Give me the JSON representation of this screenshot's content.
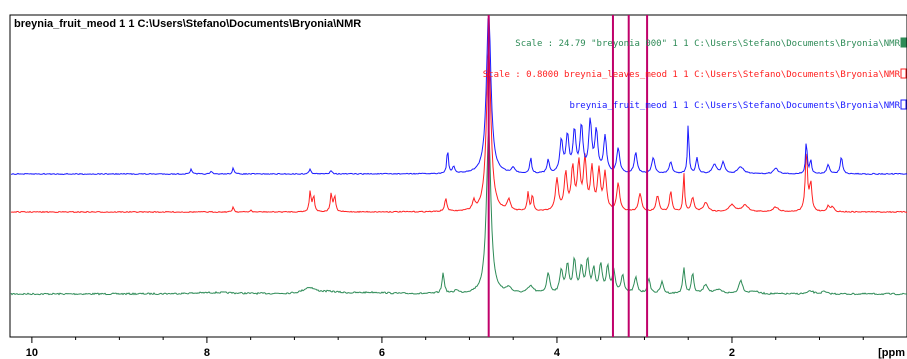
{
  "window": {
    "title": "breynia_fruit_meod  1  1  C:\\Users\\Stefano\\Documents\\Bryonia\\NMR"
  },
  "chart_data": {
    "type": "line",
    "xlabel": "[ppm",
    "xlim": [
      10.25,
      0.0
    ],
    "x_ticks": [
      10,
      8,
      6,
      4,
      2
    ],
    "grid": false,
    "legend_position": "top-right",
    "legend": [
      {
        "text": "Scale : 24.79   \"breyonia 000\"  1  1  C:\\Users\\Stefano\\Documents\\Bryonia\\NMR",
        "color": "#2e8b57"
      },
      {
        "text": "Scale : 0.8000   breynia_leaves_meod  1  1  C:\\Users\\Stefano\\Documents\\Bryonia\\NMR",
        "color": "#ff2020"
      },
      {
        "text": "breynia_fruit_meod  1  1  C:\\Users\\Stefano\\Documents\\Bryonia\\NMR",
        "color": "#1a1aff"
      }
    ],
    "markers": [
      {
        "x": 4.78,
        "color": "#c0006a"
      },
      {
        "x": 3.36,
        "color": "#c0006a"
      },
      {
        "x": 3.18,
        "color": "#c0006a"
      },
      {
        "x": 2.97,
        "color": "#c0006a"
      }
    ],
    "series": [
      {
        "color": "#2e8b57",
        "baseline": 0.0,
        "peaks": [
          [
            7.9,
            0.03,
            0.3
          ],
          [
            6.83,
            0.13,
            0.08
          ],
          [
            6.6,
            0.04,
            0.15
          ],
          [
            6.1,
            0.03,
            0.2
          ],
          [
            5.3,
            0.45,
            0.015
          ],
          [
            5.15,
            0.08,
            0.02
          ],
          [
            4.78,
            3.6,
            0.03
          ],
          [
            4.55,
            0.12,
            0.03
          ],
          [
            4.3,
            0.15,
            0.04
          ],
          [
            4.1,
            0.45,
            0.02
          ],
          [
            3.95,
            0.5,
            0.02
          ],
          [
            3.88,
            0.6,
            0.02
          ],
          [
            3.8,
            0.7,
            0.02
          ],
          [
            3.72,
            0.55,
            0.02
          ],
          [
            3.65,
            0.7,
            0.02
          ],
          [
            3.58,
            0.5,
            0.02
          ],
          [
            3.5,
            0.6,
            0.02
          ],
          [
            3.42,
            0.55,
            0.02
          ],
          [
            3.35,
            0.45,
            0.02
          ],
          [
            3.25,
            0.4,
            0.02
          ],
          [
            3.1,
            0.35,
            0.02
          ],
          [
            2.95,
            0.3,
            0.02
          ],
          [
            2.8,
            0.25,
            0.02
          ],
          [
            2.55,
            0.55,
            0.015
          ],
          [
            2.45,
            0.45,
            0.015
          ],
          [
            2.3,
            0.2,
            0.03
          ],
          [
            2.15,
            0.08,
            0.05
          ],
          [
            1.9,
            0.3,
            0.025
          ],
          [
            1.75,
            0.06,
            0.05
          ],
          [
            1.1,
            0.06,
            0.04
          ],
          [
            0.95,
            0.05,
            0.03
          ]
        ]
      },
      {
        "color": "#ff2020",
        "baseline": 0.0,
        "peaks": [
          [
            7.7,
            0.12,
            0.01
          ],
          [
            7.5,
            0.04,
            0.01
          ],
          [
            6.82,
            0.45,
            0.012
          ],
          [
            6.78,
            0.35,
            0.012
          ],
          [
            6.58,
            0.4,
            0.012
          ],
          [
            6.54,
            0.35,
            0.012
          ],
          [
            5.27,
            0.28,
            0.015
          ],
          [
            4.95,
            0.2,
            0.015
          ],
          [
            4.78,
            3.6,
            0.03
          ],
          [
            4.55,
            0.25,
            0.02
          ],
          [
            4.33,
            0.4,
            0.012
          ],
          [
            4.28,
            0.35,
            0.012
          ],
          [
            4.0,
            0.7,
            0.02
          ],
          [
            3.9,
            0.8,
            0.02
          ],
          [
            3.82,
            0.9,
            0.02
          ],
          [
            3.75,
            1.0,
            0.02
          ],
          [
            3.68,
            1.1,
            0.02
          ],
          [
            3.6,
            0.9,
            0.02
          ],
          [
            3.52,
            0.85,
            0.02
          ],
          [
            3.45,
            0.8,
            0.02
          ],
          [
            3.3,
            0.6,
            0.02
          ],
          [
            3.05,
            0.4,
            0.02
          ],
          [
            2.85,
            0.35,
            0.02
          ],
          [
            2.7,
            0.45,
            0.015
          ],
          [
            2.55,
            0.85,
            0.01
          ],
          [
            2.45,
            0.3,
            0.02
          ],
          [
            2.3,
            0.2,
            0.03
          ],
          [
            2.0,
            0.15,
            0.04
          ],
          [
            1.85,
            0.15,
            0.04
          ],
          [
            1.5,
            0.1,
            0.04
          ],
          [
            1.15,
            1.3,
            0.015
          ],
          [
            1.1,
            0.6,
            0.015
          ],
          [
            0.9,
            0.12,
            0.02
          ],
          [
            0.85,
            0.1,
            0.02
          ]
        ]
      },
      {
        "color": "#1a1aff",
        "baseline": 0.0,
        "peaks": [
          [
            8.18,
            0.12,
            0.01
          ],
          [
            7.95,
            0.06,
            0.01
          ],
          [
            7.7,
            0.14,
            0.01
          ],
          [
            6.82,
            0.1,
            0.015
          ],
          [
            6.58,
            0.08,
            0.015
          ],
          [
            5.25,
            0.55,
            0.01
          ],
          [
            5.18,
            0.15,
            0.015
          ],
          [
            4.78,
            3.6,
            0.03
          ],
          [
            4.5,
            0.12,
            0.02
          ],
          [
            4.3,
            0.35,
            0.012
          ],
          [
            4.1,
            0.3,
            0.015
          ],
          [
            3.95,
            0.7,
            0.02
          ],
          [
            3.88,
            0.8,
            0.02
          ],
          [
            3.8,
            0.9,
            0.02
          ],
          [
            3.72,
            1.0,
            0.02
          ],
          [
            3.62,
            1.1,
            0.02
          ],
          [
            3.55,
            0.9,
            0.02
          ],
          [
            3.45,
            0.8,
            0.02
          ],
          [
            3.3,
            0.55,
            0.02
          ],
          [
            3.1,
            0.45,
            0.02
          ],
          [
            2.9,
            0.35,
            0.02
          ],
          [
            2.7,
            0.25,
            0.02
          ],
          [
            2.5,
            1.1,
            0.01
          ],
          [
            2.4,
            0.35,
            0.015
          ],
          [
            2.2,
            0.2,
            0.03
          ],
          [
            2.1,
            0.25,
            0.02
          ],
          [
            1.9,
            0.15,
            0.04
          ],
          [
            1.5,
            0.12,
            0.03
          ],
          [
            1.15,
            0.75,
            0.01
          ],
          [
            1.1,
            0.3,
            0.012
          ],
          [
            0.9,
            0.2,
            0.02
          ],
          [
            0.75,
            0.38,
            0.015
          ]
        ]
      }
    ]
  }
}
